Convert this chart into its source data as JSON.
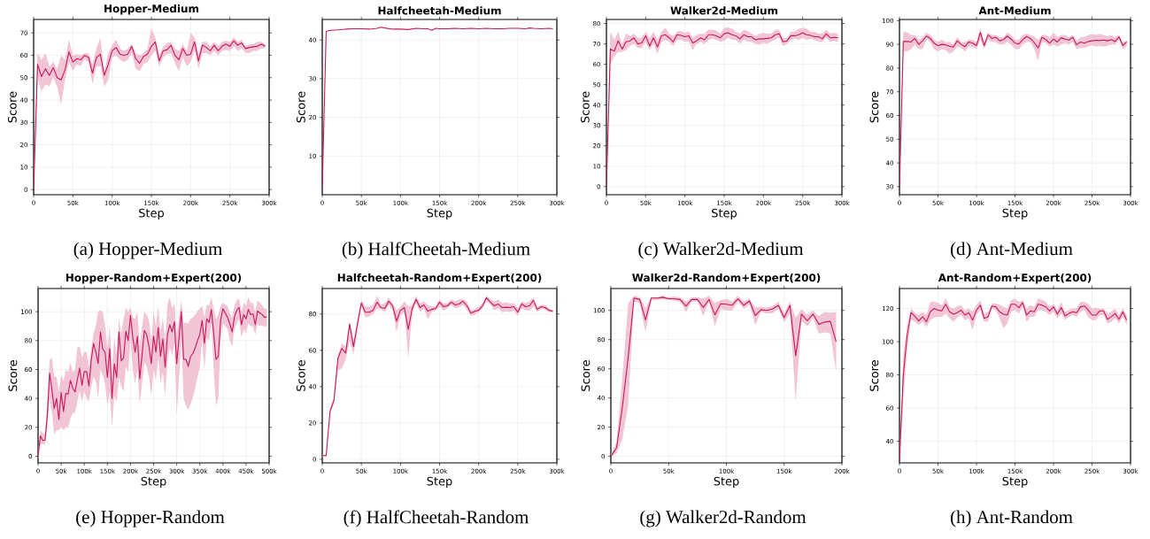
{
  "chart_data": [
    {
      "type": "line",
      "title": "Hopper-Medium",
      "xlabel": "Step",
      "ylabel": "Score",
      "annotations": [
        "(a) Hopper-Medium"
      ],
      "grid": true,
      "xlim": [
        0,
        300000
      ],
      "xticks": [
        0,
        {
          "value": 50000,
          "label": "50k"
        },
        {
          "value": 100000,
          "label": "100k"
        },
        {
          "value": 150000,
          "label": "150k"
        },
        {
          "value": 200000,
          "label": "200k"
        },
        {
          "value": 250000,
          "label": "250k"
        },
        {
          "value": 300000,
          "label": "300k"
        }
      ],
      "ylim": [
        -2.3,
        76
      ],
      "yticks": [
        0,
        10,
        20,
        30,
        40,
        50,
        60,
        70
      ],
      "x": [
        0,
        5000,
        10000,
        15000,
        20000,
        25000,
        30000,
        35000,
        40000,
        45000,
        50000,
        55000,
        60000,
        65000,
        70000,
        75000,
        80000,
        85000,
        90000,
        95000,
        100000,
        105000,
        110000,
        115000,
        120000,
        125000,
        130000,
        135000,
        140000,
        145000,
        150000,
        155000,
        160000,
        165000,
        170000,
        175000,
        180000,
        185000,
        190000,
        195000,
        200000,
        205000,
        210000,
        215000,
        220000,
        225000,
        230000,
        235000,
        240000,
        245000,
        250000,
        255000,
        260000,
        265000,
        270000,
        275000,
        280000,
        285000,
        290000,
        295000
      ],
      "series": [
        {
          "color": "#c8175a",
          "values": [
            0,
            56,
            50.5,
            54,
            51,
            54.5,
            50,
            49,
            53.5,
            61.5,
            57,
            58.5,
            58,
            60,
            59,
            52,
            59,
            60.5,
            51,
            56,
            62,
            63.5,
            60.5,
            60,
            60.5,
            64,
            58.5,
            56.5,
            59.5,
            60.5,
            64,
            66,
            57.5,
            62,
            62.5,
            64.5,
            60,
            58,
            63,
            60,
            60.5,
            66,
            57.5,
            64.5,
            63.5,
            62,
            64.5,
            62,
            64,
            65,
            64,
            66.5,
            64.5,
            65.5,
            63,
            63.5,
            63.8,
            64,
            65,
            64
          ],
          "lower": [
            0,
            50,
            44,
            47,
            46,
            50,
            46,
            38,
            49,
            57,
            53,
            56,
            55,
            58,
            57,
            47,
            55,
            55,
            46,
            49,
            59,
            60,
            58,
            57,
            58,
            61,
            54,
            53,
            56,
            57,
            60,
            62,
            55,
            59,
            60.5,
            61,
            56.5,
            53,
            59,
            55,
            57,
            62,
            54,
            61,
            61,
            60,
            62,
            60,
            62,
            62.5,
            62,
            64,
            62,
            63,
            61,
            61,
            62,
            62,
            63,
            63
          ],
          "upper": [
            2,
            61,
            58,
            61,
            55,
            57,
            54,
            60,
            58,
            67,
            60,
            60.5,
            60,
            61,
            61,
            56,
            63,
            68,
            53,
            61,
            64.5,
            67,
            63,
            62,
            63,
            65,
            61,
            60,
            61,
            63,
            72,
            68,
            60,
            64,
            65.5,
            66,
            63,
            62,
            65,
            62,
            70,
            68,
            61,
            66,
            66,
            64,
            66,
            64,
            66,
            66.5,
            66,
            68,
            66,
            67,
            64,
            65,
            65,
            66,
            66,
            65
          ]
        }
      ]
    },
    {
      "type": "line",
      "title": "Halfcheetah-Medium",
      "xlabel": "Step",
      "ylabel": "Score",
      "annotations": [
        "(b) HalfCheetah-Medium"
      ],
      "grid": true,
      "xlim": [
        0,
        300000
      ],
      "xticks": [
        0,
        {
          "value": 50000,
          "label": "50k"
        },
        {
          "value": 100000,
          "label": "100k"
        },
        {
          "value": 150000,
          "label": "150k"
        },
        {
          "value": 200000,
          "label": "200k"
        },
        {
          "value": 250000,
          "label": "250k"
        },
        {
          "value": 300000,
          "label": "300k"
        }
      ],
      "ylim": [
        0,
        45.3
      ],
      "yticks": [
        10,
        20,
        30,
        40
      ],
      "x": [
        0,
        5000,
        10000,
        20000,
        30000,
        40000,
        50000,
        60000,
        70000,
        75000,
        80000,
        90000,
        100000,
        110000,
        120000,
        130000,
        135000,
        140000,
        145000,
        150000,
        160000,
        170000,
        180000,
        190000,
        200000,
        210000,
        220000,
        230000,
        240000,
        250000,
        260000,
        265000,
        270000,
        280000,
        290000,
        295000
      ],
      "series": [
        {
          "color": "#c8175a",
          "values": [
            1.5,
            42.2,
            42.5,
            42.6,
            42.8,
            42.9,
            42.9,
            42.8,
            43,
            43.3,
            43.1,
            42.8,
            42.8,
            42.7,
            43,
            42.9,
            42.9,
            42.5,
            43,
            42.9,
            42.9,
            43,
            42.9,
            43,
            42.9,
            43,
            42.9,
            42.9,
            43,
            43,
            42.9,
            43.1,
            43,
            42.9,
            43,
            42.9
          ]
        }
      ]
    },
    {
      "type": "line",
      "title": "Walker2d-Medium",
      "xlabel": "Step",
      "ylabel": "Score",
      "annotations": [
        "(c) Walker2d-Medium"
      ],
      "grid": true,
      "xlim": [
        0,
        300000
      ],
      "xticks": [
        0,
        {
          "value": 50000,
          "label": "50k"
        },
        {
          "value": 100000,
          "label": "100k"
        },
        {
          "value": 150000,
          "label": "150k"
        },
        {
          "value": 200000,
          "label": "200k"
        },
        {
          "value": 250000,
          "label": "250k"
        },
        {
          "value": 300000,
          "label": "300k"
        }
      ],
      "ylim": [
        -4,
        82
      ],
      "yticks": [
        0,
        10,
        20,
        30,
        40,
        50,
        60,
        70,
        80
      ],
      "x": [
        0,
        5000,
        10000,
        15000,
        20000,
        25000,
        30000,
        35000,
        40000,
        45000,
        50000,
        55000,
        60000,
        65000,
        70000,
        75000,
        80000,
        85000,
        90000,
        95000,
        100000,
        105000,
        110000,
        115000,
        120000,
        125000,
        130000,
        135000,
        140000,
        145000,
        150000,
        155000,
        160000,
        165000,
        170000,
        175000,
        180000,
        185000,
        190000,
        195000,
        200000,
        205000,
        210000,
        215000,
        220000,
        225000,
        230000,
        235000,
        240000,
        245000,
        250000,
        255000,
        260000,
        265000,
        270000,
        275000,
        280000,
        285000,
        290000,
        295000
      ],
      "series": [
        {
          "color": "#c8175a",
          "values": [
            0,
            67.5,
            66.5,
            71.5,
            67.5,
            71,
            71.5,
            73,
            70,
            70.5,
            74,
            69,
            73,
            68.5,
            74,
            74.5,
            73,
            71,
            74.5,
            74.2,
            73.5,
            74,
            70.5,
            71.5,
            73,
            72,
            74.5,
            74.5,
            74,
            73,
            75,
            75.5,
            74.5,
            74,
            72.5,
            74.5,
            73.5,
            73.5,
            72,
            72.5,
            72.5,
            72.7,
            73,
            74.5,
            75,
            71,
            71.5,
            74,
            74,
            74.5,
            75.5,
            74.5,
            74.2,
            73.5,
            73.5,
            72.5,
            75,
            73,
            73.2,
            73
          ],
          "lower": [
            0,
            60,
            64,
            66,
            66,
            67,
            69,
            70,
            68,
            68,
            71,
            67,
            70,
            65,
            71,
            72,
            71,
            69,
            72,
            72,
            71,
            71,
            67,
            70,
            71,
            70,
            72,
            72.5,
            72,
            71,
            71.5,
            73,
            72,
            72,
            70,
            72,
            71,
            71,
            70,
            69.5,
            70.5,
            70,
            71.3,
            72,
            73,
            69,
            70,
            72,
            72.5,
            72,
            73,
            72,
            72.5,
            72,
            71,
            71,
            73,
            71,
            71.5,
            71
          ],
          "upper": [
            1,
            76,
            72,
            76,
            70,
            75,
            74,
            75,
            73,
            73,
            76,
            73,
            76,
            72,
            76,
            78,
            75,
            74,
            76,
            76.5,
            75.5,
            76,
            73,
            74.5,
            75,
            75,
            77,
            77,
            76.5,
            75,
            78,
            78,
            77.5,
            76,
            75,
            77,
            76.5,
            75,
            74,
            75,
            75.5,
            75,
            75,
            77,
            77,
            73,
            73,
            76,
            76,
            77.3,
            78,
            77.5,
            76,
            76,
            75,
            75,
            77,
            75,
            75.5,
            75
          ]
        }
      ]
    },
    {
      "type": "line",
      "title": "Ant-Medium",
      "xlabel": "Step",
      "ylabel": "Score",
      "annotations": [
        "(d) Ant-Medium"
      ],
      "grid": true,
      "xlim": [
        0,
        300000
      ],
      "xticks": [
        0,
        {
          "value": 50000,
          "label": "50k"
        },
        {
          "value": 100000,
          "label": "100k"
        },
        {
          "value": 150000,
          "label": "150k"
        },
        {
          "value": 200000,
          "label": "200k"
        },
        {
          "value": 250000,
          "label": "250k"
        },
        {
          "value": 300000,
          "label": "300k"
        }
      ],
      "ylim": [
        26.6,
        100.5
      ],
      "yticks": [
        30,
        40,
        50,
        60,
        70,
        80,
        90,
        100
      ],
      "x": [
        0,
        5000,
        10000,
        15000,
        20000,
        25000,
        30000,
        35000,
        40000,
        45000,
        50000,
        55000,
        60000,
        65000,
        70000,
        75000,
        80000,
        85000,
        90000,
        95000,
        100000,
        105000,
        110000,
        115000,
        120000,
        125000,
        130000,
        135000,
        140000,
        145000,
        150000,
        155000,
        160000,
        165000,
        170000,
        175000,
        180000,
        185000,
        190000,
        195000,
        200000,
        205000,
        210000,
        215000,
        220000,
        225000,
        230000,
        235000,
        240000,
        245000,
        250000,
        255000,
        260000,
        265000,
        270000,
        275000,
        280000,
        285000,
        290000,
        295000
      ],
      "series": [
        {
          "color": "#c8175a",
          "values": [
            29,
            91.2,
            91.2,
            91,
            92.5,
            90,
            91.5,
            93.5,
            92.5,
            90.5,
            89.5,
            90,
            89.8,
            89.2,
            88.8,
            91.5,
            90,
            89,
            91,
            90.5,
            89.5,
            95,
            89.5,
            94,
            92.5,
            93,
            91.5,
            92,
            93.5,
            92.2,
            90.5,
            90.2,
            92,
            93.3,
            92.5,
            90.7,
            88.5,
            93,
            92,
            90.5,
            92.2,
            91,
            92.8,
            92.2,
            91.8,
            93,
            89.8,
            91,
            90.5,
            91.2,
            91.5,
            91.7,
            91.6,
            91.8,
            91.5,
            92,
            91.2,
            93.2,
            89.5,
            91
          ],
          "lower": [
            28,
            87,
            87,
            88,
            90,
            88,
            88,
            92,
            91,
            88,
            87,
            88,
            87.5,
            86,
            87,
            89,
            88.5,
            87,
            89,
            89,
            88,
            92,
            88,
            92,
            91,
            91,
            90,
            90,
            91,
            90,
            88,
            88,
            90,
            91,
            91,
            88,
            83,
            91,
            90.5,
            89,
            90,
            89,
            90,
            90.5,
            90,
            91,
            88,
            88.5,
            88.5,
            89,
            89.6,
            89,
            89.3,
            89,
            89.4,
            90,
            90,
            92,
            88,
            89
          ],
          "upper": [
            30,
            95.5,
            95,
            94,
            94,
            92,
            93,
            95,
            94,
            92,
            91,
            92,
            91,
            91,
            90,
            93,
            91,
            91,
            92,
            92,
            91,
            97,
            91,
            95,
            94,
            94,
            93,
            93,
            95,
            94,
            92,
            92,
            94,
            94.5,
            94,
            93.3,
            92,
            94,
            94,
            93,
            95,
            93,
            94,
            94,
            93,
            94,
            91.5,
            93,
            93,
            94,
            94.3,
            94,
            94.4,
            94,
            93.5,
            94,
            93,
            94,
            91,
            91.5
          ]
        }
      ]
    },
    {
      "type": "line",
      "title": "Hopper-Random+Expert(200)",
      "xlabel": "Step",
      "ylabel": "Score",
      "annotations": [
        "(e) Hopper-Random"
      ],
      "grid": true,
      "xlim": [
        0,
        500000
      ],
      "xticks": [
        0,
        {
          "value": 50000,
          "label": "50k"
        },
        {
          "value": 100000,
          "label": "100k"
        },
        {
          "value": 150000,
          "label": "150k"
        },
        {
          "value": 200000,
          "label": "200k"
        },
        {
          "value": 250000,
          "label": "250k"
        },
        {
          "value": 300000,
          "label": "300k"
        },
        {
          "value": 350000,
          "label": "350k"
        },
        {
          "value": 400000,
          "label": "400k"
        },
        {
          "value": 450000,
          "label": "450k"
        },
        {
          "value": 500000,
          "label": "500k"
        }
      ],
      "ylim": [
        -4.6,
        116
      ],
      "yticks": [
        0,
        20,
        40,
        60,
        80,
        100
      ],
      "x": [
        0,
        5000,
        10000,
        15000,
        20000,
        25000,
        30000,
        35000,
        40000,
        45000,
        50000,
        55000,
        60000,
        65000,
        70000,
        75000,
        80000,
        85000,
        90000,
        95000,
        100000,
        105000,
        110000,
        115000,
        120000,
        125000,
        130000,
        135000,
        140000,
        145000,
        150000,
        155000,
        160000,
        165000,
        170000,
        175000,
        180000,
        185000,
        190000,
        195000,
        200000,
        205000,
        210000,
        215000,
        220000,
        225000,
        230000,
        235000,
        240000,
        245000,
        250000,
        255000,
        260000,
        265000,
        270000,
        275000,
        280000,
        285000,
        290000,
        295000,
        300000,
        310000,
        315000,
        320000,
        325000,
        330000,
        335000,
        340000,
        345000,
        350000,
        355000,
        360000,
        365000,
        370000,
        375000,
        380000,
        385000,
        390000,
        395000,
        400000,
        410000,
        415000,
        420000,
        425000,
        430000,
        435000,
        440000,
        445000,
        450000,
        455000,
        460000,
        465000,
        470000,
        475000,
        480000,
        485000,
        490000,
        495000
      ],
      "series": [
        {
          "color": "#c8175a",
          "values": [
            0,
            14,
            11,
            11,
            28,
            57.5,
            46,
            33,
            40,
            25.5,
            44,
            31,
            43.5,
            43,
            52.5,
            47,
            44.5,
            53,
            61,
            49,
            58.5,
            58.5,
            48.5,
            66,
            78,
            72,
            64,
            86,
            74,
            72,
            54.5,
            74.5,
            40,
            64,
            54.5,
            86,
            66,
            68,
            86.5,
            80,
            97.5,
            82,
            72,
            83,
            53.5,
            70,
            87,
            84,
            76,
            64,
            83,
            72,
            89,
            69,
            81,
            61.5,
            84,
            91,
            86,
            93,
            64,
            100,
            67,
            67,
            62,
            69,
            71,
            75,
            80,
            84,
            94,
            78,
            95,
            92.5,
            101.5,
            85,
            67,
            69,
            94,
            102,
            96,
            91.5,
            86,
            96.5,
            101,
            103,
            91,
            98,
            95,
            101.5,
            98,
            98.5,
            91,
            100.5,
            99,
            98,
            96,
            96.5
          ],
          "lower": [
            -2,
            8,
            8.5,
            8,
            20,
            40,
            30,
            15,
            18,
            18,
            20,
            18,
            20,
            20,
            26,
            30,
            30,
            38,
            45,
            38,
            45,
            40,
            38,
            48,
            55,
            52,
            40,
            60,
            56,
            50,
            35,
            45,
            20,
            42,
            38,
            55,
            48,
            45,
            62,
            58,
            80,
            60,
            50,
            60,
            36,
            50,
            65,
            62,
            55,
            42,
            60,
            52,
            68,
            50,
            58,
            42,
            65,
            75,
            70,
            78,
            28,
            80,
            40,
            35,
            32,
            36,
            41,
            47,
            55,
            62,
            80,
            60,
            82,
            80,
            92,
            60,
            35,
            40,
            80,
            92,
            88,
            80,
            76,
            88,
            92,
            95,
            82,
            88,
            85,
            92,
            90,
            90,
            84,
            92,
            90,
            90.5,
            89.5,
            90
          ],
          "upper": [
            2,
            18,
            16,
            15,
            38,
            67,
            68,
            55,
            55,
            45,
            56,
            52,
            60,
            58,
            65,
            58,
            60,
            75,
            76,
            68,
            72,
            72,
            62,
            75,
            85,
            90,
            100,
            101,
            100,
            90,
            75,
            90,
            60,
            82,
            70,
            95,
            85,
            95,
            103,
            100,
            103,
            96,
            95,
            100,
            76,
            90,
            100,
            98,
            94,
            80,
            100,
            90,
            104,
            86,
            96,
            80,
            105,
            110,
            102,
            106,
            85,
            108,
            92,
            92.5,
            92,
            95,
            96,
            98,
            100.5,
            102,
            104,
            96,
            105,
            104,
            110,
            102,
            95,
            98,
            104,
            106,
            104,
            99,
            96,
            104,
            108,
            109,
            100,
            106,
            104,
            110,
            106,
            106,
            100,
            108,
            106,
            104.5,
            102,
            102
          ]
        }
      ]
    },
    {
      "type": "line",
      "title": "Halfcheetah-Random+Expert(200)",
      "xlabel": "Step",
      "ylabel": "Score",
      "annotations": [
        "(f) HalfCheetah-Random"
      ],
      "grid": true,
      "xlim": [
        0,
        300000
      ],
      "xticks": [
        0,
        {
          "value": 50000,
          "label": "50k"
        },
        {
          "value": 100000,
          "label": "100k"
        },
        {
          "value": 150000,
          "label": "150k"
        },
        {
          "value": 200000,
          "label": "200k"
        },
        {
          "value": 250000,
          "label": "250k"
        },
        {
          "value": 300000,
          "label": "300k"
        }
      ],
      "ylim": [
        -2,
        94
      ],
      "yticks": [
        0,
        20,
        40,
        60,
        80
      ],
      "x": [
        0,
        5000,
        10000,
        15000,
        20000,
        25000,
        30000,
        35000,
        40000,
        45000,
        50000,
        55000,
        60000,
        65000,
        70000,
        75000,
        80000,
        85000,
        90000,
        95000,
        100000,
        105000,
        110000,
        115000,
        120000,
        125000,
        130000,
        135000,
        140000,
        145000,
        150000,
        155000,
        160000,
        165000,
        170000,
        175000,
        180000,
        185000,
        190000,
        195000,
        200000,
        205000,
        210000,
        215000,
        220000,
        225000,
        230000,
        235000,
        240000,
        245000,
        250000,
        255000,
        260000,
        265000,
        270000,
        275000,
        280000,
        285000,
        290000,
        295000
      ],
      "series": [
        {
          "color": "#c8175a",
          "values": [
            2,
            2,
            26.5,
            32.5,
            55.5,
            61,
            58.5,
            74.5,
            62,
            74.5,
            86,
            81,
            81,
            82,
            86.5,
            83.5,
            83,
            87,
            84.5,
            76,
            82,
            83.5,
            71.5,
            83,
            88,
            83.5,
            85,
            81.5,
            82.5,
            83,
            86.5,
            84,
            84.5,
            86.5,
            85,
            85.5,
            87,
            84.5,
            80.5,
            81.5,
            82,
            84.5,
            89,
            86.5,
            84.5,
            85.5,
            83.5,
            83.7,
            83.5,
            84,
            81,
            85.5,
            84,
            84.5,
            87.5,
            82.5,
            84,
            83.5,
            82,
            81.5
          ],
          "lower": [
            1.5,
            1.5,
            25,
            31,
            49,
            50,
            55,
            65,
            58,
            70,
            84,
            78,
            78.5,
            80,
            83,
            82.5,
            81,
            85,
            82,
            70,
            79,
            81,
            56,
            80,
            86,
            81,
            83,
            77,
            81,
            82,
            84,
            82,
            83,
            85,
            83,
            83.7,
            85,
            82.3,
            79,
            79.5,
            81,
            83,
            87,
            85,
            82,
            83,
            81,
            81.5,
            81,
            82,
            79,
            83,
            82,
            82,
            84,
            81,
            83,
            82.3,
            81,
            81
          ],
          "upper": [
            2.5,
            2.5,
            28,
            34,
            57,
            64,
            62,
            76,
            65,
            77,
            88,
            84,
            84,
            85,
            90,
            85,
            86,
            89,
            86,
            82,
            84,
            87,
            84,
            85,
            90,
            86,
            87,
            85,
            84,
            84,
            88,
            86,
            86,
            88,
            87,
            88,
            88,
            87,
            82,
            82.7,
            84,
            86,
            90,
            88,
            87,
            88,
            86,
            86.5,
            85.7,
            86,
            83,
            87,
            86,
            87,
            89,
            84,
            85,
            85,
            83,
            82
          ]
        }
      ]
    },
    {
      "type": "line",
      "title": "Walker2d-Random+Expert(200)",
      "xlabel": "Step",
      "ylabel": "Score",
      "annotations": [
        "(g) Walker2d-Random"
      ],
      "grid": true,
      "xlim": [
        0,
        200000
      ],
      "xticks": [
        0,
        {
          "value": 50000,
          "label": "50k"
        },
        {
          "value": 100000,
          "label": "100k"
        },
        {
          "value": 150000,
          "label": "150k"
        },
        {
          "value": 200000,
          "label": "200k"
        }
      ],
      "ylim": [
        -4.5,
        115
      ],
      "yticks": [
        0,
        20,
        40,
        60,
        80,
        100
      ],
      "x": [
        0,
        5000,
        10000,
        15000,
        20000,
        25000,
        30000,
        35000,
        40000,
        45000,
        50000,
        55000,
        60000,
        65000,
        70000,
        75000,
        80000,
        85000,
        90000,
        95000,
        100000,
        105000,
        110000,
        115000,
        120000,
        125000,
        130000,
        135000,
        140000,
        145000,
        150000,
        155000,
        160000,
        165000,
        170000,
        175000,
        180000,
        185000,
        190000,
        195000
      ],
      "series": [
        {
          "color": "#c8175a",
          "values": [
            0,
            6,
            34,
            68,
            108.5,
            107.5,
            93.5,
            108.5,
            108.5,
            109,
            108,
            108,
            107.5,
            103,
            107.5,
            107.5,
            102,
            107.5,
            97,
            104.5,
            104.2,
            103.5,
            108,
            103.5,
            106.5,
            96.5,
            100.5,
            100,
            101,
            103.5,
            95,
            103.5,
            69,
            97.5,
            93,
            97.5,
            90.5,
            92,
            92.5,
            78.5
          ],
          "lower": [
            0,
            2,
            12,
            35,
            106,
            105,
            85,
            107,
            107,
            107.5,
            107,
            106.7,
            106,
            99,
            106,
            106,
            96,
            106,
            89,
            101,
            100,
            100,
            106,
            101,
            104,
            90,
            99,
            98,
            98,
            101,
            92,
            98,
            38,
            93,
            89,
            95,
            84,
            85,
            84,
            58
          ],
          "upper": [
            1,
            10,
            55,
            105,
            110,
            109,
            102,
            109,
            109,
            110,
            109,
            109.5,
            109,
            106,
            109,
            109,
            108,
            110,
            105,
            107,
            108,
            106,
            110,
            106,
            108,
            102,
            102.5,
            102,
            103,
            106,
            98,
            106,
            95,
            101,
            97,
            100,
            96,
            99,
            98.5,
            99
          ]
        }
      ]
    },
    {
      "type": "line",
      "title": "Ant-Random+Expert(200)",
      "xlabel": "Step",
      "ylabel": "Score",
      "annotations": [
        "(h) Ant-Random"
      ],
      "grid": true,
      "xlim": [
        0,
        300000
      ],
      "xticks": [
        0,
        {
          "value": 50000,
          "label": "50k"
        },
        {
          "value": 100000,
          "label": "100k"
        },
        {
          "value": 150000,
          "label": "150k"
        },
        {
          "value": 200000,
          "label": "200k"
        },
        {
          "value": 250000,
          "label": "250k"
        },
        {
          "value": 300000,
          "label": "300k"
        }
      ],
      "ylim": [
        27,
        132
      ],
      "yticks": [
        40,
        60,
        80,
        100,
        120
      ],
      "x": [
        0,
        5000,
        10000,
        15000,
        20000,
        25000,
        30000,
        35000,
        40000,
        45000,
        50000,
        55000,
        60000,
        65000,
        70000,
        75000,
        80000,
        85000,
        90000,
        95000,
        100000,
        105000,
        110000,
        115000,
        120000,
        125000,
        130000,
        135000,
        140000,
        145000,
        150000,
        155000,
        160000,
        165000,
        170000,
        175000,
        180000,
        185000,
        190000,
        195000,
        200000,
        205000,
        210000,
        215000,
        220000,
        225000,
        230000,
        235000,
        240000,
        245000,
        250000,
        255000,
        260000,
        265000,
        270000,
        275000,
        280000,
        285000,
        290000,
        295000
      ],
      "series": [
        {
          "color": "#c8175a",
          "values": [
            28,
            80,
            104,
            117.5,
            115.3,
            112.5,
            115,
            112,
            118,
            120,
            119,
            118.5,
            122.5,
            118,
            116.5,
            117.5,
            119,
            116,
            117.5,
            113,
            119,
            122,
            114,
            115,
            121.5,
            121,
            118,
            116.5,
            116,
            122.5,
            122.5,
            120.5,
            123.5,
            116,
            118.5,
            118,
            122.5,
            122,
            121,
            118.5,
            121,
            116.5,
            120.5,
            115.5,
            117,
            118,
            117.5,
            121,
            121.5,
            119,
            116,
            116,
            118.5,
            118.5,
            113.5,
            115,
            117,
            113.5,
            118,
            113
          ],
          "lower": [
            27,
            65,
            95,
            113,
            112,
            110,
            112,
            109,
            113,
            114.5,
            115,
            115,
            117,
            114,
            112,
            114.5,
            116,
            113,
            114,
            107,
            116,
            119,
            112,
            112,
            120,
            119,
            114,
            108,
            111,
            118,
            119,
            117,
            121,
            112,
            115,
            115,
            119,
            119,
            118,
            116,
            118,
            114,
            117,
            113,
            115,
            116,
            115,
            118,
            119,
            115,
            113,
            113,
            116,
            116,
            111,
            112,
            114,
            111,
            115,
            110
          ],
          "upper": [
            29,
            92,
            110,
            120,
            117.5,
            116,
            118,
            116,
            124,
            124,
            123.3,
            122,
            126,
            121,
            120,
            121.3,
            122,
            119,
            120,
            118,
            122,
            125,
            117,
            118,
            123,
            123,
            122.3,
            121,
            120,
            125,
            126,
            124,
            125,
            120,
            122,
            121,
            126,
            125.3,
            124,
            121,
            123,
            119,
            124,
            118,
            119.3,
            120,
            120,
            124,
            124,
            123,
            120,
            120.5,
            119.7,
            120,
            117,
            118,
            120,
            116,
            120,
            116
          ]
        }
      ]
    }
  ]
}
